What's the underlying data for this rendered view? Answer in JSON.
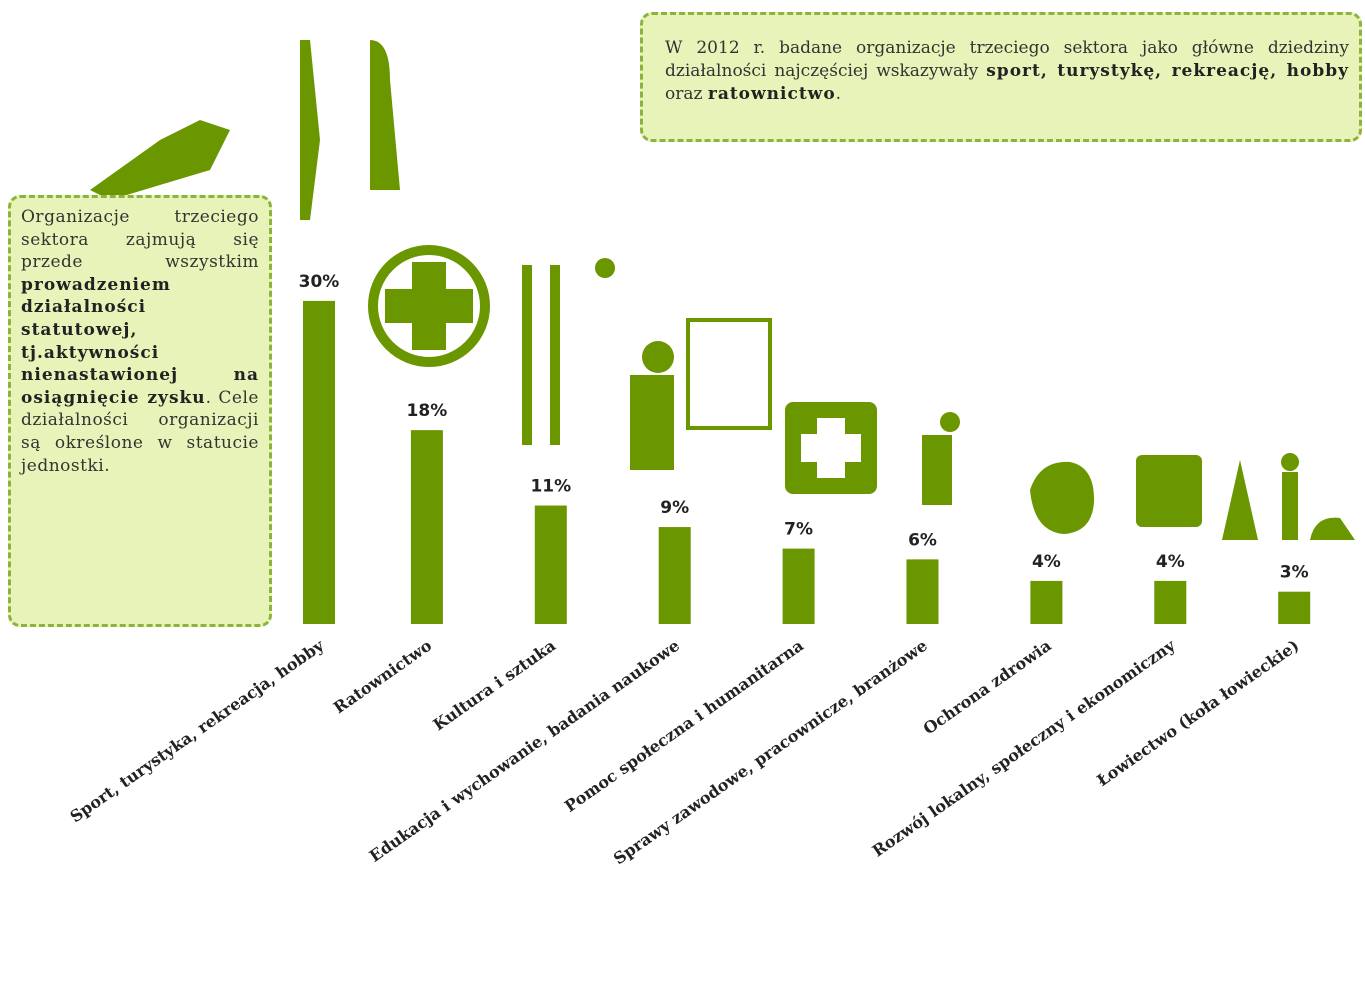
{
  "chart_data": {
    "type": "bar",
    "categories": [
      "Sport, turystyka, rekreacja, hobby",
      "Ratownictwo",
      "Kultura i sztuka",
      "Edukacja i wychowanie, badania naukowe",
      "Pomoc społeczna i humanitarna",
      "Sprawy zawodowe, pracownicze, branżowe",
      "Ochrona zdrowia",
      "Rozwój lokalny, społeczny i ekonomiczny",
      "Łowiectwo (koła łowieckie)"
    ],
    "values": [
      30,
      18,
      11,
      9,
      7,
      6,
      4,
      4,
      3
    ],
    "value_labels": [
      "30%",
      "18%",
      "11%",
      "9%",
      "7%",
      "6%",
      "4%",
      "4%",
      "3%"
    ],
    "color": "#6a9600"
  },
  "notes": [
    {
      "segments": [
        {
          "text": "W 2012 r. badane organizacje trzeciego sektora jako główne dziedziny działalności najczęściej wskazywały ",
          "bold": false
        },
        {
          "text": "sport, turystykę, rekreację, hobby",
          "bold": true
        },
        {
          "text": " oraz ",
          "bold": false
        },
        {
          "text": "ratownictwo",
          "bold": true
        },
        {
          "text": ".",
          "bold": false
        }
      ]
    },
    {
      "segments": [
        {
          "text": "Organizacje trzeciego sektora zajmują się przede wszystkim ",
          "bold": false
        },
        {
          "text": "prowadzeniem działalności statutowej, tj.aktywności nienastawionej na osiągnięcie zysku",
          "bold": true
        },
        {
          "text": ". Cele działalności organizacji są określone w statucie jednostki.",
          "bold": false
        }
      ]
    }
  ]
}
